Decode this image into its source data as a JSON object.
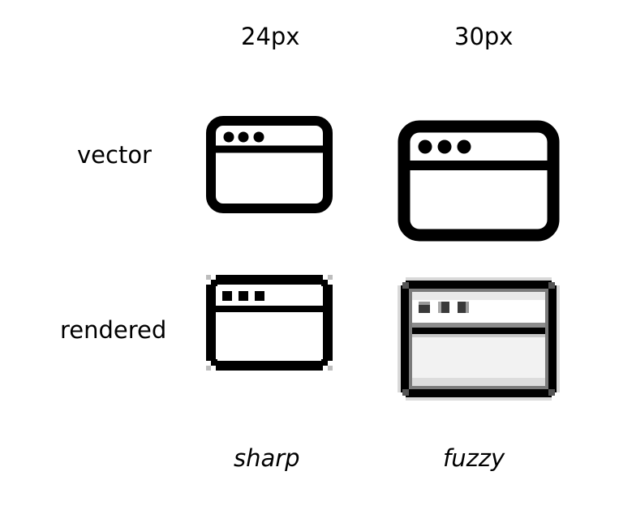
{
  "columns": {
    "size_small": "24px",
    "size_large": "30px"
  },
  "rows": {
    "vector": "vector",
    "rendered": "rendered"
  },
  "captions": {
    "sharp": "sharp",
    "fuzzy": "fuzzy"
  },
  "icons": {
    "name": "browser-window-icon",
    "stroke_color": "#000000",
    "fuzzy_gray": "#8a8a8a"
  }
}
